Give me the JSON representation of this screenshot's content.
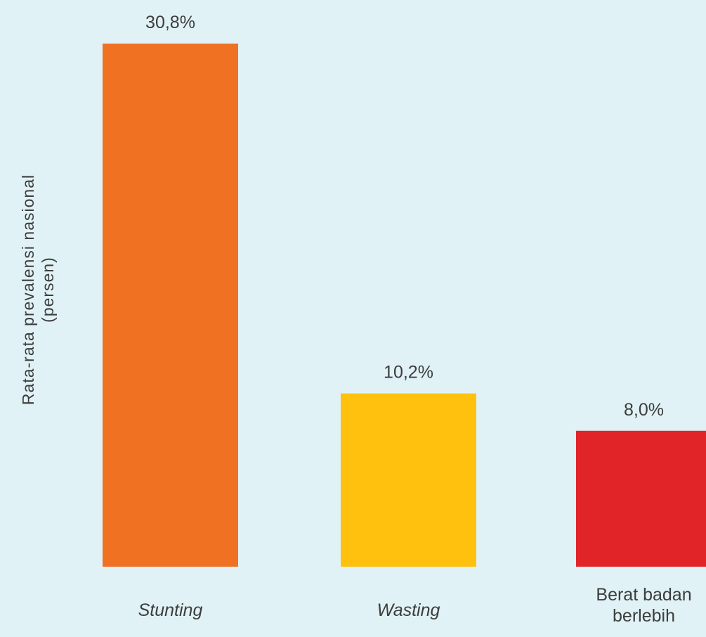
{
  "chart_data": {
    "type": "bar",
    "categories": [
      "Stunting",
      "Wasting",
      "Berat badan berlebih"
    ],
    "category_lines": [
      [
        "Stunting"
      ],
      [
        "Wasting"
      ],
      [
        "Berat badan",
        "berlebih"
      ]
    ],
    "category_italic": [
      true,
      true,
      false
    ],
    "values": [
      30.8,
      10.2,
      8.0
    ],
    "value_labels": [
      "30,8%",
      "10,2%",
      "8,0%"
    ],
    "colors": [
      "#f07122",
      "#ffc10e",
      "#e12427"
    ],
    "ylabel_line1": "Rata-rata prevalensi nasional",
    "ylabel_line2": "(persen)",
    "ylim": [
      0,
      30.8
    ],
    "grid": false,
    "legend": false
  }
}
